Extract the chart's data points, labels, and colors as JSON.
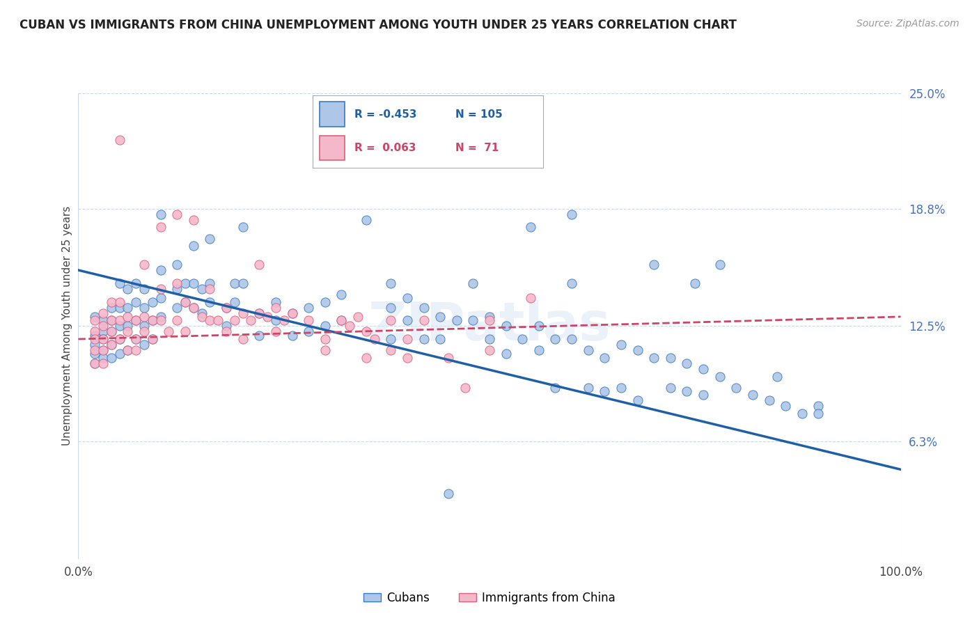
{
  "title": "CUBAN VS IMMIGRANTS FROM CHINA UNEMPLOYMENT AMONG YOUTH UNDER 25 YEARS CORRELATION CHART",
  "source": "Source: ZipAtlas.com",
  "ylabel": "Unemployment Among Youth under 25 years",
  "xlim": [
    0,
    1.0
  ],
  "ylim": [
    0,
    0.25
  ],
  "yticks": [
    0.063,
    0.125,
    0.188,
    0.25
  ],
  "ytick_labels": [
    "6.3%",
    "12.5%",
    "18.8%",
    "25.0%"
  ],
  "xtick_labels": [
    "0.0%",
    "100.0%"
  ],
  "legend_r_cubans": "-0.453",
  "legend_n_cubans": "105",
  "legend_r_china": " 0.063",
  "legend_n_china": " 71",
  "cubans_color": "#aec6e8",
  "china_color": "#f5b8cb",
  "cubans_edge_color": "#3a7abf",
  "china_edge_color": "#d9607a",
  "cubans_line_color": "#1f5fa6",
  "china_line_color": "#cc4466",
  "watermark": "ZIPatlas",
  "cubans_trendline": [
    [
      0.0,
      0.155
    ],
    [
      1.0,
      0.048
    ]
  ],
  "china_trendline": [
    [
      0.0,
      0.118
    ],
    [
      1.0,
      0.13
    ]
  ],
  "cubans_scatter": [
    [
      0.02,
      0.13
    ],
    [
      0.02,
      0.12
    ],
    [
      0.02,
      0.115
    ],
    [
      0.02,
      0.11
    ],
    [
      0.02,
      0.105
    ],
    [
      0.03,
      0.128
    ],
    [
      0.03,
      0.122
    ],
    [
      0.03,
      0.118
    ],
    [
      0.03,
      0.112
    ],
    [
      0.03,
      0.108
    ],
    [
      0.04,
      0.135
    ],
    [
      0.04,
      0.128
    ],
    [
      0.04,
      0.122
    ],
    [
      0.04,
      0.115
    ],
    [
      0.04,
      0.108
    ],
    [
      0.05,
      0.148
    ],
    [
      0.05,
      0.135
    ],
    [
      0.05,
      0.125
    ],
    [
      0.05,
      0.118
    ],
    [
      0.05,
      0.11
    ],
    [
      0.06,
      0.145
    ],
    [
      0.06,
      0.135
    ],
    [
      0.06,
      0.125
    ],
    [
      0.06,
      0.112
    ],
    [
      0.07,
      0.148
    ],
    [
      0.07,
      0.138
    ],
    [
      0.07,
      0.128
    ],
    [
      0.07,
      0.118
    ],
    [
      0.08,
      0.145
    ],
    [
      0.08,
      0.135
    ],
    [
      0.08,
      0.125
    ],
    [
      0.08,
      0.115
    ],
    [
      0.09,
      0.138
    ],
    [
      0.09,
      0.128
    ],
    [
      0.09,
      0.118
    ],
    [
      0.1,
      0.185
    ],
    [
      0.1,
      0.155
    ],
    [
      0.1,
      0.14
    ],
    [
      0.1,
      0.13
    ],
    [
      0.12,
      0.158
    ],
    [
      0.12,
      0.145
    ],
    [
      0.12,
      0.135
    ],
    [
      0.13,
      0.148
    ],
    [
      0.13,
      0.138
    ],
    [
      0.14,
      0.168
    ],
    [
      0.14,
      0.148
    ],
    [
      0.14,
      0.135
    ],
    [
      0.15,
      0.145
    ],
    [
      0.15,
      0.132
    ],
    [
      0.16,
      0.172
    ],
    [
      0.16,
      0.148
    ],
    [
      0.16,
      0.138
    ],
    [
      0.18,
      0.135
    ],
    [
      0.18,
      0.125
    ],
    [
      0.19,
      0.148
    ],
    [
      0.19,
      0.138
    ],
    [
      0.2,
      0.178
    ],
    [
      0.2,
      0.148
    ],
    [
      0.22,
      0.132
    ],
    [
      0.22,
      0.12
    ],
    [
      0.24,
      0.138
    ],
    [
      0.24,
      0.128
    ],
    [
      0.26,
      0.132
    ],
    [
      0.26,
      0.12
    ],
    [
      0.28,
      0.135
    ],
    [
      0.28,
      0.122
    ],
    [
      0.3,
      0.138
    ],
    [
      0.3,
      0.125
    ],
    [
      0.32,
      0.142
    ],
    [
      0.32,
      0.128
    ],
    [
      0.35,
      0.182
    ],
    [
      0.38,
      0.148
    ],
    [
      0.38,
      0.135
    ],
    [
      0.38,
      0.118
    ],
    [
      0.4,
      0.14
    ],
    [
      0.4,
      0.128
    ],
    [
      0.42,
      0.135
    ],
    [
      0.42,
      0.118
    ],
    [
      0.44,
      0.13
    ],
    [
      0.44,
      0.118
    ],
    [
      0.46,
      0.128
    ],
    [
      0.48,
      0.148
    ],
    [
      0.48,
      0.128
    ],
    [
      0.5,
      0.13
    ],
    [
      0.5,
      0.118
    ],
    [
      0.52,
      0.125
    ],
    [
      0.52,
      0.11
    ],
    [
      0.54,
      0.118
    ],
    [
      0.55,
      0.178
    ],
    [
      0.56,
      0.125
    ],
    [
      0.56,
      0.112
    ],
    [
      0.58,
      0.118
    ],
    [
      0.58,
      0.092
    ],
    [
      0.6,
      0.185
    ],
    [
      0.6,
      0.148
    ],
    [
      0.6,
      0.118
    ],
    [
      0.62,
      0.112
    ],
    [
      0.62,
      0.092
    ],
    [
      0.64,
      0.108
    ],
    [
      0.64,
      0.09
    ],
    [
      0.66,
      0.115
    ],
    [
      0.66,
      0.092
    ],
    [
      0.68,
      0.112
    ],
    [
      0.68,
      0.085
    ],
    [
      0.7,
      0.158
    ],
    [
      0.7,
      0.108
    ],
    [
      0.72,
      0.108
    ],
    [
      0.72,
      0.092
    ],
    [
      0.74,
      0.105
    ],
    [
      0.74,
      0.09
    ],
    [
      0.75,
      0.148
    ],
    [
      0.76,
      0.102
    ],
    [
      0.76,
      0.088
    ],
    [
      0.78,
      0.158
    ],
    [
      0.78,
      0.098
    ],
    [
      0.8,
      0.092
    ],
    [
      0.82,
      0.088
    ],
    [
      0.84,
      0.085
    ],
    [
      0.85,
      0.098
    ],
    [
      0.86,
      0.082
    ],
    [
      0.88,
      0.078
    ],
    [
      0.9,
      0.082
    ],
    [
      0.9,
      0.078
    ],
    [
      0.45,
      0.035
    ]
  ],
  "china_scatter": [
    [
      0.02,
      0.128
    ],
    [
      0.02,
      0.122
    ],
    [
      0.02,
      0.118
    ],
    [
      0.02,
      0.112
    ],
    [
      0.02,
      0.105
    ],
    [
      0.03,
      0.132
    ],
    [
      0.03,
      0.125
    ],
    [
      0.03,
      0.118
    ],
    [
      0.03,
      0.112
    ],
    [
      0.03,
      0.105
    ],
    [
      0.04,
      0.138
    ],
    [
      0.04,
      0.128
    ],
    [
      0.04,
      0.122
    ],
    [
      0.04,
      0.115
    ],
    [
      0.05,
      0.225
    ],
    [
      0.05,
      0.138
    ],
    [
      0.05,
      0.128
    ],
    [
      0.05,
      0.118
    ],
    [
      0.06,
      0.13
    ],
    [
      0.06,
      0.122
    ],
    [
      0.06,
      0.112
    ],
    [
      0.07,
      0.128
    ],
    [
      0.07,
      0.118
    ],
    [
      0.07,
      0.112
    ],
    [
      0.08,
      0.158
    ],
    [
      0.08,
      0.13
    ],
    [
      0.08,
      0.122
    ],
    [
      0.09,
      0.128
    ],
    [
      0.09,
      0.118
    ],
    [
      0.1,
      0.178
    ],
    [
      0.1,
      0.145
    ],
    [
      0.1,
      0.128
    ],
    [
      0.11,
      0.122
    ],
    [
      0.12,
      0.185
    ],
    [
      0.12,
      0.148
    ],
    [
      0.12,
      0.128
    ],
    [
      0.13,
      0.138
    ],
    [
      0.13,
      0.122
    ],
    [
      0.14,
      0.182
    ],
    [
      0.14,
      0.135
    ],
    [
      0.15,
      0.13
    ],
    [
      0.16,
      0.145
    ],
    [
      0.16,
      0.128
    ],
    [
      0.17,
      0.128
    ],
    [
      0.18,
      0.135
    ],
    [
      0.18,
      0.122
    ],
    [
      0.19,
      0.128
    ],
    [
      0.2,
      0.132
    ],
    [
      0.2,
      0.118
    ],
    [
      0.21,
      0.128
    ],
    [
      0.22,
      0.158
    ],
    [
      0.22,
      0.132
    ],
    [
      0.23,
      0.13
    ],
    [
      0.24,
      0.135
    ],
    [
      0.24,
      0.122
    ],
    [
      0.25,
      0.128
    ],
    [
      0.26,
      0.132
    ],
    [
      0.28,
      0.128
    ],
    [
      0.3,
      0.118
    ],
    [
      0.3,
      0.112
    ],
    [
      0.32,
      0.128
    ],
    [
      0.33,
      0.125
    ],
    [
      0.34,
      0.13
    ],
    [
      0.35,
      0.122
    ],
    [
      0.35,
      0.108
    ],
    [
      0.36,
      0.118
    ],
    [
      0.38,
      0.128
    ],
    [
      0.38,
      0.112
    ],
    [
      0.4,
      0.118
    ],
    [
      0.4,
      0.108
    ],
    [
      0.42,
      0.128
    ],
    [
      0.45,
      0.108
    ],
    [
      0.47,
      0.092
    ],
    [
      0.5,
      0.128
    ],
    [
      0.5,
      0.112
    ],
    [
      0.55,
      0.14
    ]
  ]
}
